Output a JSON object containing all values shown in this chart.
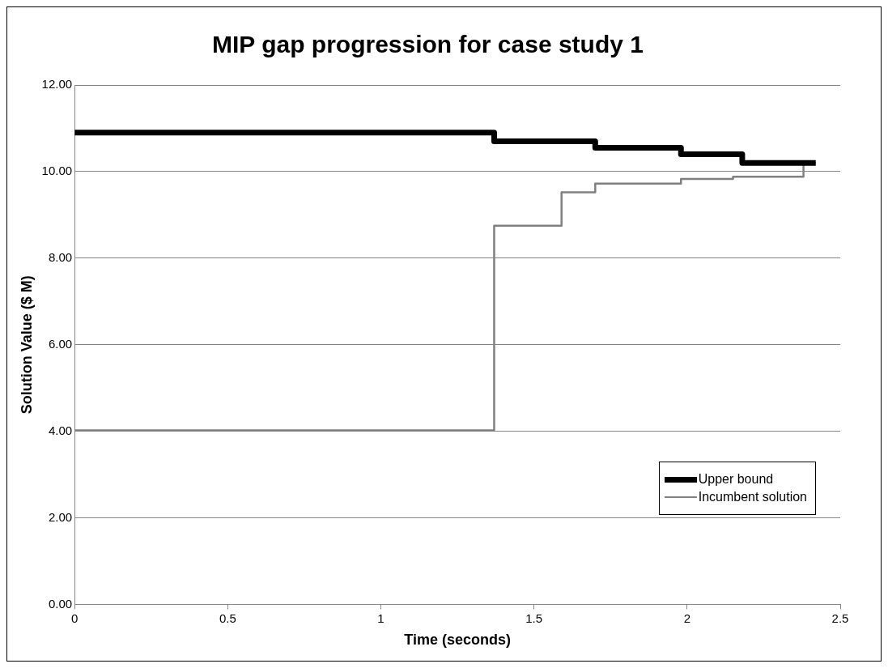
{
  "chart_data": {
    "type": "step",
    "title": "MIP gap progression for case study 1",
    "xlabel": "Time (seconds)",
    "ylabel": "Solution Value ($ M)",
    "series": [
      {
        "name": "Upper bound",
        "color": "#000000",
        "x": [
          0,
          1.37,
          1.7,
          1.98,
          2.18,
          2.42
        ],
        "values": [
          10.9,
          10.7,
          10.55,
          10.4,
          10.2,
          10.2
        ]
      },
      {
        "name": "Incumbent solution",
        "color": "#808080",
        "x": [
          0,
          1.37,
          1.59,
          1.7,
          1.98,
          2.15,
          2.38,
          2.42
        ],
        "values": [
          4.02,
          8.75,
          9.52,
          9.72,
          9.83,
          9.88,
          10.2,
          10.2
        ]
      }
    ],
    "xlim": [
      0,
      2.5
    ],
    "xticks": [
      0,
      0.5,
      1,
      1.5,
      2,
      2.5
    ],
    "ylim": [
      0,
      12
    ],
    "yticks": [
      {
        "value": 0,
        "label": "0.00"
      },
      {
        "value": 2,
        "label": "2.00"
      },
      {
        "value": 4,
        "label": "4.00"
      },
      {
        "value": 6,
        "label": "6.00"
      },
      {
        "value": 8,
        "label": "8.00"
      },
      {
        "value": 10,
        "label": "10.00"
      },
      {
        "value": 12,
        "label": "12.00"
      }
    ],
    "grid": "y",
    "legend": "bottom right",
    "marker": "none",
    "line_style": "solid"
  }
}
